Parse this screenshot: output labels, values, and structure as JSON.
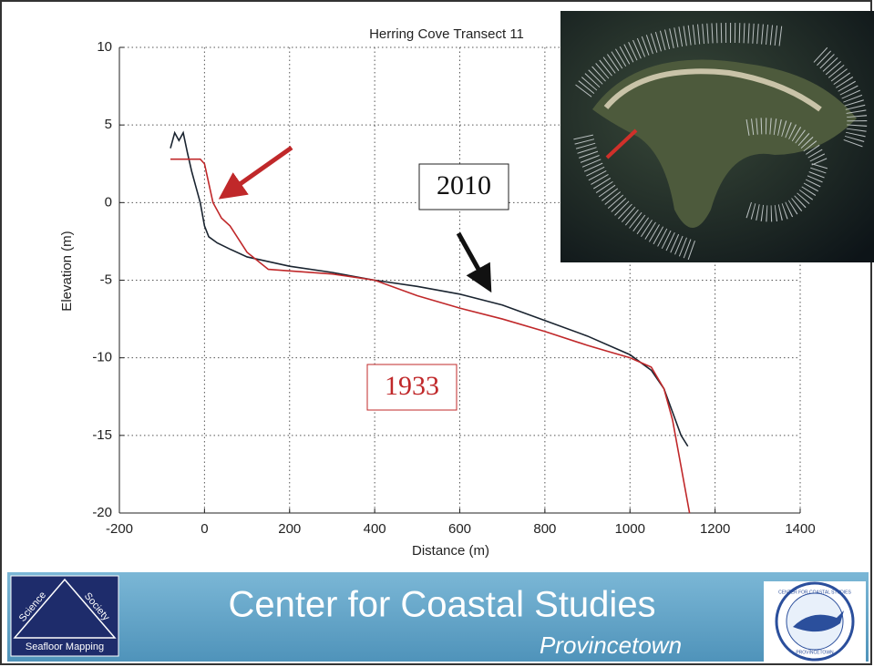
{
  "chart_data": {
    "type": "line",
    "title": "Herring Cove Transect 11",
    "xlabel": "Distance (m)",
    "ylabel": "Elevation (m)",
    "xlim": [
      -200,
      1400
    ],
    "xticks": [
      -200,
      0,
      200,
      400,
      600,
      800,
      1000,
      1200,
      1400
    ],
    "ylim": [
      -20,
      10
    ],
    "yticks": [
      -20,
      -15,
      -10,
      -5,
      0,
      5,
      10
    ],
    "grid": true,
    "series": [
      {
        "name": "2010",
        "color": "#1a2430",
        "x": [
          -80,
          -70,
          -60,
          -50,
          -40,
          -30,
          -20,
          -10,
          0,
          10,
          30,
          60,
          100,
          150,
          200,
          300,
          400,
          500,
          600,
          700,
          800,
          900,
          1000,
          1050,
          1080,
          1100,
          1120,
          1136
        ],
        "values": [
          3.5,
          4.5,
          4,
          4.5,
          3.2,
          2,
          1,
          0,
          -1.5,
          -2.2,
          -2.6,
          -3,
          -3.5,
          -3.8,
          -4.1,
          -4.5,
          -5,
          -5.4,
          -5.9,
          -6.6,
          -7.6,
          -8.6,
          -9.8,
          -10.8,
          -12,
          -13.5,
          -15,
          -15.7
        ]
      },
      {
        "name": "1933",
        "color": "#c0282a",
        "x": [
          -80,
          -10,
          0,
          20,
          40,
          60,
          100,
          150,
          200,
          300,
          400,
          500,
          600,
          700,
          800,
          900,
          950,
          1000,
          1050,
          1080,
          1100,
          1120,
          1140
        ],
        "values": [
          2.8,
          2.8,
          2.5,
          0,
          -1,
          -1.5,
          -3.2,
          -4.3,
          -4.4,
          -4.6,
          -5,
          -6,
          -6.8,
          -7.5,
          -8.3,
          -9.2,
          -9.6,
          -10,
          -10.6,
          -12,
          -14,
          -17,
          -20
        ]
      }
    ]
  },
  "footer": {
    "title": "Center for Coastal Studies",
    "subtitle": "Provincetown",
    "logo": [
      "Science",
      "Society",
      "Seafloor Mapping"
    ],
    "seal": [
      "CENTER FOR COASTAL STUDIES",
      "PROVINCETOWN"
    ]
  }
}
